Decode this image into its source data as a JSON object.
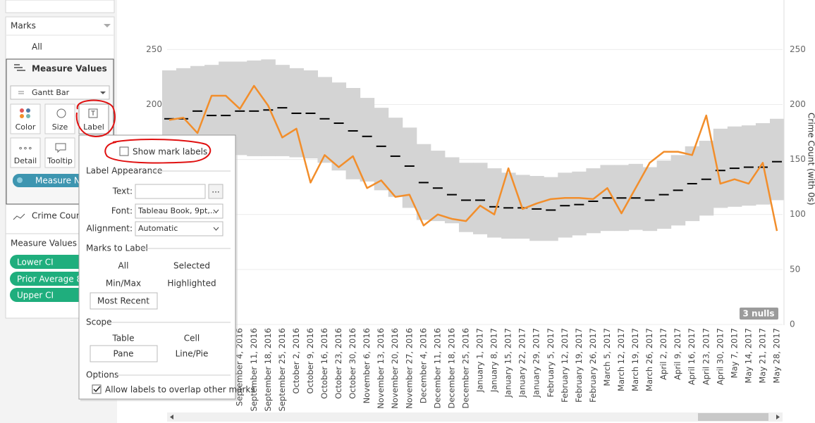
{
  "marks_card": {
    "title": "Marks",
    "all": "All",
    "measure_values": "Measure Values",
    "mark_type": "Gantt Bar",
    "buttons": [
      "Color",
      "Size",
      "Label",
      "Detail",
      "Tooltip"
    ],
    "pill": "Measure N",
    "crime_count": "Crime Coun"
  },
  "measure_values_card": {
    "title": "Measure Values",
    "pills": [
      "Lower CI",
      "Prior Average 8",
      "Upper CI"
    ]
  },
  "label_popup": {
    "show_mark_labels": "Show mark labels",
    "label_appearance": "Label Appearance",
    "text_label": "Text:",
    "text_button": "...",
    "font_label": "Font:",
    "font_value": "Tableau Book, 9pt,...",
    "alignment_label": "Alignment:",
    "alignment_value": "Automatic",
    "marks_to_label": "Marks to Label",
    "marks_options": [
      "All",
      "Selected",
      "Min/Max",
      "Highlighted",
      "Most Recent"
    ],
    "scope": "Scope",
    "scope_options": [
      "Table",
      "Cell",
      "Pane",
      "Line/Pie"
    ],
    "options": "Options",
    "allow_overlap": "Allow labels to overlap other marks"
  },
  "chart_data": {
    "type": "gantt_line",
    "y_title": "Crime Count (with 0s)",
    "nulls_badge": "3 nulls",
    "ylim": [
      0,
      295
    ],
    "yticks": [
      0,
      50,
      100,
      150,
      200,
      250
    ],
    "grid": true,
    "categories": [
      null,
      null,
      null,
      null,
      null,
      "September 4, 2016",
      "September 11, 2016",
      "September 18, 2016",
      "September 25, 2016",
      "October 2, 2016",
      "October 9, 2016",
      "October 16, 2016",
      "October 23, 2016",
      "October 30, 2016",
      "November 6, 2016",
      "November 13, 2016",
      "November 20, 2016",
      "November 27, 2016",
      "December 4, 2016",
      "December 11, 2016",
      "December 18, 2016",
      "December 25, 2016",
      "January 1, 2017",
      "January 8, 2017",
      "January 15, 2017",
      "January 22, 2017",
      "January 29, 2017",
      "February 5, 2017",
      "February 12, 2017",
      "February 19, 2017",
      "February 26, 2017",
      "March 5, 2017",
      "March 12, 2017",
      "March 19, 2017",
      "March 26, 2017",
      "April 2, 2017",
      "April 9, 2017",
      "April 16, 2017",
      "April 23, 2017",
      "April 30, 2017",
      "May 7, 2017",
      "May 14, 2017",
      "May 21, 2017",
      "May 28, 2017"
    ],
    "series": [
      {
        "color": "#f28e2b",
        "values": [
          186,
          188,
          174,
          208,
          208,
          196,
          217,
          199,
          170,
          178,
          129,
          154,
          143,
          153,
          124,
          131,
          116,
          118,
          90,
          100,
          96,
          94,
          108,
          100,
          142,
          105,
          110,
          114,
          115,
          115,
          114,
          124,
          101,
          124,
          147,
          157,
          157,
          154,
          190,
          128,
          132,
          128,
          147,
          85
        ]
      },
      {
        "color": "#000000",
        "values": [
          187,
          187,
          194,
          190,
          190,
          194,
          194,
          195,
          197,
          192,
          192,
          187,
          183,
          176,
          171,
          162,
          153,
          144,
          129,
          124,
          118,
          113,
          113,
          107,
          106,
          106,
          105,
          104,
          108,
          109,
          112,
          115,
          115,
          115,
          113,
          118,
          122,
          128,
          132,
          140,
          142,
          143,
          143,
          148
        ]
      },
      {
        "color": "#d4d4d4",
        "values": [
          158,
          160,
          160,
          160,
          161,
          154,
          153,
          153,
          153,
          152,
          151,
          147,
          140,
          132,
          130,
          122,
          116,
          106,
          95,
          94,
          92,
          84,
          82,
          79,
          78,
          78,
          76,
          76,
          79,
          81,
          83,
          85,
          85,
          86,
          85,
          87,
          90,
          94,
          99,
          106,
          107,
          108,
          109,
          113
        ]
      },
      {
        "color": "#d4d4d4",
        "values": [
          231,
          233,
          235,
          236,
          239,
          239,
          240,
          241,
          236,
          233,
          231,
          225,
          220,
          215,
          206,
          197,
          188,
          179,
          164,
          158,
          152,
          147,
          147,
          142,
          138,
          136,
          135,
          134,
          138,
          139,
          142,
          145,
          145,
          146,
          143,
          149,
          154,
          162,
          167,
          178,
          180,
          181,
          183,
          187
        ]
      }
    ]
  }
}
